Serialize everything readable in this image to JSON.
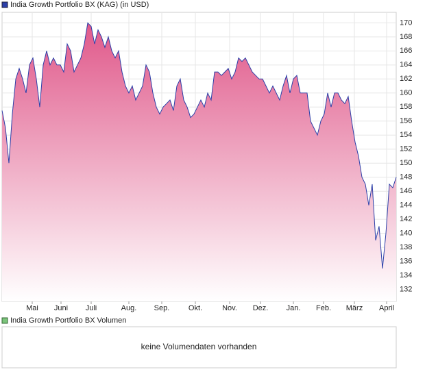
{
  "chart_data": {
    "type": "area",
    "title": "India Growth Portfolio BX (KAG) (in USD)",
    "series": [
      {
        "name": "India Growth Portfolio BX (KAG) (in USD)",
        "color": "#2b3fa8",
        "fill_top": "#e0588a",
        "fill_bottom": "#ffffff",
        "values": [
          157.5,
          155,
          150,
          157,
          162,
          163.5,
          162,
          160,
          164,
          165,
          162,
          158,
          164,
          166,
          164,
          165,
          164,
          164,
          163,
          167,
          166,
          163,
          164,
          165,
          167,
          170,
          169.5,
          167,
          169,
          168,
          166.5,
          168,
          166,
          165,
          166,
          163,
          161,
          160,
          161,
          159,
          160,
          161,
          164,
          163,
          160,
          158,
          157,
          158,
          158.5,
          159,
          157.5,
          161,
          162,
          159,
          158,
          156.5,
          157,
          158,
          159,
          158,
          160,
          159,
          163,
          163,
          162.5,
          163,
          163.5,
          162,
          163,
          165,
          164.5,
          165,
          164,
          163,
          162.5,
          162,
          162,
          161,
          160,
          161,
          160,
          159,
          161,
          162.5,
          160,
          162,
          162.5,
          160,
          160,
          160,
          156,
          155,
          154,
          156,
          157,
          160,
          158,
          160,
          160,
          159,
          158.5,
          159.5,
          156,
          153,
          151,
          148,
          147,
          144,
          147,
          139,
          141,
          135,
          140,
          147,
          146.5,
          148
        ]
      }
    ],
    "xlim": [
      0,
      115
    ],
    "xticks": [
      {
        "value": 8.8,
        "label": "Mai"
      },
      {
        "value": 17.2,
        "label": "Juni"
      },
      {
        "value": 26,
        "label": "Juli"
      },
      {
        "value": 37,
        "label": "Aug."
      },
      {
        "value": 46.6,
        "label": "Sep."
      },
      {
        "value": 56.4,
        "label": "Okt."
      },
      {
        "value": 66.4,
        "label": "Nov."
      },
      {
        "value": 75.4,
        "label": "Dez."
      },
      {
        "value": 85,
        "label": "Jan."
      },
      {
        "value": 93.8,
        "label": "Feb."
      },
      {
        "value": 102.8,
        "label": "März"
      },
      {
        "value": 112.2,
        "label": "April"
      }
    ],
    "ylim": [
      130.3,
      171.5
    ],
    "yticks": [
      132,
      134,
      136,
      138,
      140,
      142,
      144,
      146,
      148,
      150,
      152,
      154,
      156,
      158,
      160,
      162,
      164,
      166,
      168,
      170
    ],
    "grid": true,
    "volume": {
      "title": "India Growth Portfolio BX Volumen",
      "color": "#7bc47b",
      "message": "keine Volumendaten vorhanden"
    }
  }
}
